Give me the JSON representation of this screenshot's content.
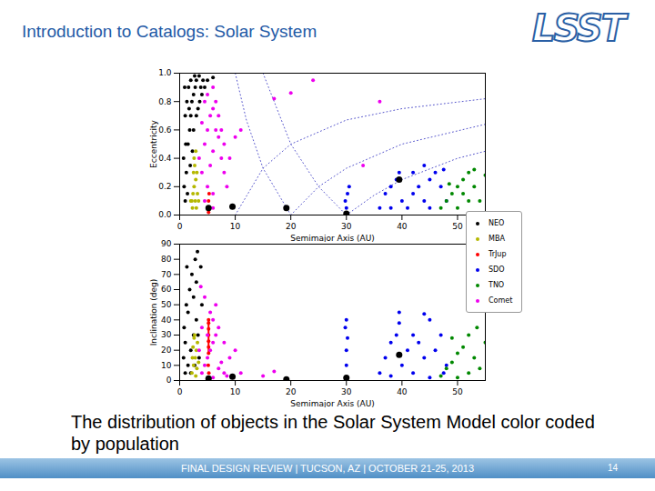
{
  "slide": {
    "title": "Introduction to Catalogs: Solar System",
    "logo": "LSST",
    "caption": "The distribution of objects in the Solar System Model color coded by population",
    "footer": "FINAL DESIGN REVIEW | TUCSON, AZ | OCTOBER 21-25, 2013",
    "page": "14"
  },
  "chart_data": [
    {
      "type": "scatter",
      "x_label": "Semimajor Axis (AU)",
      "y_label": "Eccentricity",
      "xlim": [
        0,
        55
      ],
      "xticks": [
        0,
        10,
        20,
        30,
        40,
        50
      ],
      "ylim": [
        0,
        1
      ],
      "yticks": [
        {
          "value": 0,
          "label": "0.0"
        },
        {
          "value": 0.2,
          "label": "0.2"
        },
        {
          "value": 0.4,
          "label": "0.4"
        },
        {
          "value": 0.6,
          "label": "0.6"
        },
        {
          "value": 0.8,
          "label": "0.8"
        },
        {
          "value": 1,
          "label": "1.0"
        }
      ],
      "curves": [
        {
          "x": [
            10,
            15,
            20,
            30,
            40,
            55
          ],
          "y": [
            0,
            0.33,
            0.5,
            0.67,
            0.75,
            0.82
          ],
          "color": "#5555cc",
          "line_style": "dotted"
        },
        {
          "x": [
            20,
            25,
            30,
            40,
            55
          ],
          "y": [
            0,
            0.2,
            0.33,
            0.5,
            0.64
          ],
          "color": "#5555cc",
          "line_style": "dotted"
        },
        {
          "x": [
            30,
            35,
            40,
            50,
            55
          ],
          "y": [
            0,
            0.14,
            0.25,
            0.4,
            0.45
          ],
          "color": "#5555cc",
          "line_style": "dotted"
        },
        {
          "x": [
            10,
            12,
            15,
            20
          ],
          "y": [
            1,
            0.67,
            0.33,
            0
          ],
          "color": "#5555cc",
          "line_style": "dotted"
        },
        {
          "x": [
            15,
            20,
            25,
            30
          ],
          "y": [
            1,
            0.5,
            0.2,
            0
          ],
          "color": "#5555cc",
          "line_style": "dotted"
        }
      ],
      "series": [
        {
          "name": "NEO",
          "color": "#000000",
          "x": [
            0.8,
            1.0,
            1.2,
            1.5,
            1.8,
            2.0,
            2.2,
            2.5,
            2.8,
            3.0,
            1.3,
            1.6,
            2.0,
            2.5,
            3.0,
            3.3,
            3.6,
            3.8,
            1.1,
            0.7,
            2.3,
            1.9,
            1.4,
            2.7,
            3.5,
            4.0,
            4.2,
            1.0,
            0.9,
            1.7,
            5,
            6,
            4.5
          ],
          "y": [
            0.2,
            0.1,
            0.3,
            0.5,
            0.6,
            0.7,
            0.8,
            0.85,
            0.9,
            0.95,
            0.8,
            0.9,
            0.95,
            0.6,
            0.7,
            0.75,
            0.8,
            0.9,
            0.5,
            0.4,
            0.45,
            0.35,
            0.15,
            0.98,
            0.98,
            0.85,
            0.95,
            0.7,
            0.9,
            0.75,
            0.95,
            0.97,
            0.9
          ]
        },
        {
          "name": "MBA",
          "color": "#b5b800",
          "x": [
            2.2,
            2.4,
            2.6,
            2.8,
            3.0,
            3.2,
            2.5,
            2.7,
            2.9,
            3.1,
            2.3,
            3.4,
            2.6,
            2.0,
            2.9
          ],
          "y": [
            0.1,
            0.15,
            0.2,
            0.1,
            0.05,
            0.15,
            0.3,
            0.35,
            0.25,
            0.3,
            0.05,
            0.1,
            0.4,
            0.1,
            0.45
          ]
        },
        {
          "name": "TrJup",
          "color": "#ff0000",
          "x": [
            5.1,
            5.2,
            5.3,
            5.2
          ],
          "y": [
            0.05,
            0.1,
            0.15,
            0.02
          ]
        },
        {
          "name": "SDO",
          "color": "#0000ee",
          "x": [
            30,
            30.2,
            29.8,
            30.5,
            36,
            37,
            38,
            39,
            39.5,
            40,
            41,
            42,
            43,
            44,
            45,
            46,
            47,
            48,
            44,
            42,
            38,
            45,
            47.5
          ],
          "y": [
            0.05,
            0.15,
            0.1,
            0.2,
            0.05,
            0.15,
            0.2,
            0.25,
            0.3,
            0.1,
            0.05,
            0.15,
            0.2,
            0.1,
            0.25,
            0.3,
            0.2,
            0.1,
            0.35,
            0.3,
            0.05,
            0.05,
            0.32
          ]
        },
        {
          "name": "TNO",
          "color": "#008800",
          "x": [
            47,
            48,
            49,
            50,
            51,
            52,
            53,
            54,
            50,
            52,
            55,
            48.5,
            53,
            51
          ],
          "y": [
            0.05,
            0.1,
            0.15,
            0.2,
            0.25,
            0.3,
            0.2,
            0.1,
            0.05,
            0.1,
            0.28,
            0.22,
            0.32,
            0.15
          ]
        },
        {
          "name": "Comet",
          "color": "#ee00ee",
          "x": [
            4,
            4.5,
            5,
            5.5,
            6,
            6.5,
            7,
            7.5,
            8,
            8.5,
            6,
            5,
            4.5,
            5.5,
            6.5,
            7,
            4,
            3.5,
            6,
            7.5,
            8,
            9,
            10,
            11,
            5,
            6,
            4.5,
            6,
            17,
            20,
            24,
            33,
            36
          ],
          "y": [
            0.3,
            0.5,
            0.6,
            0.7,
            0.75,
            0.8,
            0.55,
            0.4,
            0.3,
            0.2,
            0.45,
            0.2,
            0.1,
            0.35,
            0.6,
            0.7,
            0.65,
            0.4,
            0.15,
            0.6,
            0.5,
            0.4,
            0.55,
            0.6,
            0.85,
            0.9,
            0.8,
            0.05,
            0.82,
            0.86,
            0.95,
            0.35,
            0.8
          ]
        }
      ],
      "planets": {
        "color": "#000000",
        "x": [
          5.2,
          9.5,
          19.2,
          30,
          39.5
        ],
        "y": [
          0.05,
          0.06,
          0.05,
          0.01,
          0.25
        ]
      }
    },
    {
      "type": "scatter",
      "x_label": "Semimajor Axis (AU)",
      "y_label": "Inclination (deg)",
      "xlim": [
        0,
        55
      ],
      "xticks": [
        0,
        10,
        20,
        30,
        40,
        50
      ],
      "ylim": [
        0,
        90
      ],
      "yticks": [
        0,
        10,
        20,
        30,
        40,
        50,
        60,
        70,
        80,
        90
      ],
      "legend": "right",
      "curves": [
        {
          "x": [
            5.2,
            5.2
          ],
          "y": [
            18,
            40
          ],
          "color": "#ff0000",
          "line_style": "solid"
        }
      ],
      "series": [
        {
          "name": "NEO",
          "color": "#000000",
          "x": [
            1,
            1.5,
            2,
            2.5,
            3,
            1.2,
            1.8,
            2.2,
            2.8,
            3.2,
            1,
            3.5,
            0.8,
            1.5,
            2.5,
            3,
            3.8,
            2,
            1.3,
            3.3,
            4,
            0.7,
            2.7
          ],
          "y": [
            5,
            10,
            20,
            30,
            40,
            50,
            60,
            70,
            80,
            85,
            25,
            15,
            35,
            45,
            55,
            65,
            75,
            5,
            75,
            30,
            50,
            15,
            10
          ]
        },
        {
          "name": "MBA",
          "color": "#b5b800",
          "x": [
            2.2,
            2.5,
            2.8,
            3,
            3.2,
            2.4,
            2.6,
            3.1,
            3.4,
            2.3,
            2.9,
            2.7
          ],
          "y": [
            5,
            10,
            15,
            20,
            25,
            22,
            28,
            8,
            12,
            15,
            3,
            30
          ]
        },
        {
          "name": "TrJup",
          "color": "#ff0000",
          "x": [
            5.2,
            5.2,
            5.2,
            5.2,
            5.2,
            5.2,
            5.2,
            5.15,
            5.25
          ],
          "y": [
            18,
            22,
            26,
            30,
            34,
            38,
            40,
            10,
            5
          ]
        },
        {
          "name": "SDO",
          "color": "#0000ee",
          "x": [
            30,
            30,
            30,
            30.2,
            29.8,
            30,
            36,
            37,
            38,
            39,
            39.5,
            40,
            41,
            42,
            43,
            44,
            45,
            46,
            47,
            48,
            44,
            42,
            45,
            47.5,
            39.5,
            38
          ],
          "y": [
            2,
            10,
            20,
            28,
            35,
            40,
            5,
            15,
            25,
            30,
            38,
            10,
            20,
            30,
            25,
            15,
            40,
            20,
            30,
            10,
            44,
            5,
            2,
            5,
            45,
            3
          ]
        },
        {
          "name": "TNO",
          "color": "#008800",
          "x": [
            47,
            48,
            49,
            50,
            51,
            52,
            53,
            54,
            55,
            50,
            52,
            53.5,
            49
          ],
          "y": [
            3,
            8,
            12,
            18,
            22,
            30,
            15,
            8,
            25,
            2,
            5,
            35,
            28
          ]
        },
        {
          "name": "Comet",
          "color": "#ee00ee",
          "x": [
            4,
            4.5,
            5,
            5.5,
            6,
            6.5,
            7,
            7.5,
            8,
            8.5,
            6,
            5,
            4,
            3.5,
            6,
            7,
            9,
            5.5,
            4.5,
            6.5,
            10,
            11,
            8,
            15,
            17,
            3.8
          ],
          "y": [
            5,
            10,
            15,
            20,
            25,
            30,
            8,
            12,
            5,
            3,
            2,
            30,
            35,
            20,
            40,
            35,
            15,
            45,
            55,
            50,
            20,
            5,
            25,
            3,
            6,
            62
          ]
        }
      ],
      "planets": {
        "color": "#000000",
        "x": [
          5.2,
          9.5,
          19.2,
          30,
          39.5
        ],
        "y": [
          1.3,
          2.5,
          0.8,
          1.8,
          17
        ]
      }
    }
  ]
}
